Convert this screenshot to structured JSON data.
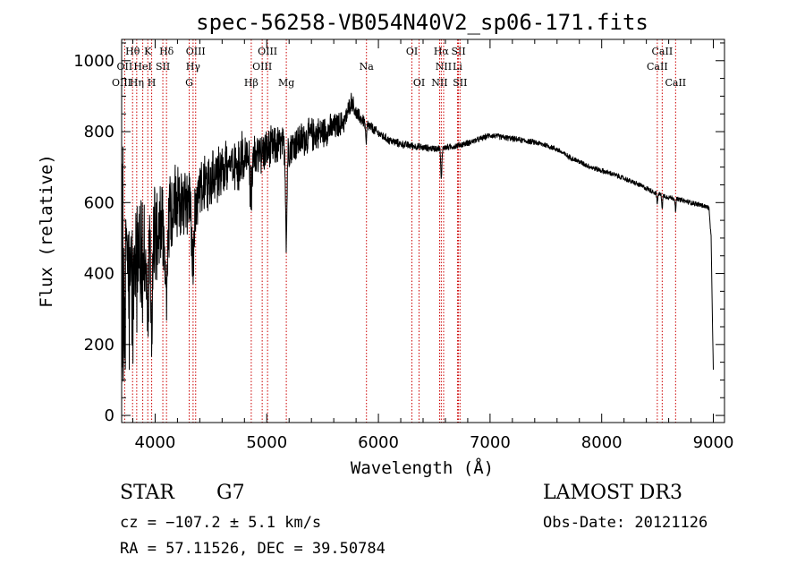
{
  "chart_data": {
    "type": "line",
    "title": "spec-56258-VB054N40V2_sp06-171.fits",
    "xlabel": "Wavelength (Å)",
    "ylabel": "Flux (relative)",
    "xlim": [
      3700,
      9100
    ],
    "ylim": [
      -20,
      1060
    ],
    "x_ticks": [
      4000,
      5000,
      6000,
      7000,
      8000,
      9000
    ],
    "y_ticks": [
      0,
      200,
      400,
      600,
      800,
      1000
    ],
    "x_minor_step": 200,
    "y_minor_step": 50,
    "grid": false,
    "line_color": "#000000",
    "line_marker_color": "#cc0000",
    "spectrum": {
      "x_start": 3700,
      "x_end": 9000,
      "continuum_anchors": [
        [
          3700,
          320
        ],
        [
          3800,
          370
        ],
        [
          3900,
          450
        ],
        [
          4000,
          520
        ],
        [
          4100,
          560
        ],
        [
          4200,
          590
        ],
        [
          4300,
          600
        ],
        [
          4400,
          630
        ],
        [
          4500,
          660
        ],
        [
          4600,
          690
        ],
        [
          4700,
          710
        ],
        [
          4800,
          725
        ],
        [
          4900,
          735
        ],
        [
          5000,
          745
        ],
        [
          5100,
          760
        ],
        [
          5200,
          755
        ],
        [
          5300,
          775
        ],
        [
          5400,
          790
        ],
        [
          5500,
          800
        ],
        [
          5600,
          810
        ],
        [
          5700,
          830
        ],
        [
          5760,
          890
        ],
        [
          5800,
          850
        ],
        [
          5900,
          820
        ],
        [
          6000,
          795
        ],
        [
          6100,
          775
        ],
        [
          6200,
          765
        ],
        [
          6300,
          760
        ],
        [
          6400,
          755
        ],
        [
          6500,
          752
        ],
        [
          6600,
          755
        ],
        [
          6700,
          760
        ],
        [
          6800,
          768
        ],
        [
          6900,
          778
        ],
        [
          7000,
          790
        ],
        [
          7100,
          785
        ],
        [
          7200,
          780
        ],
        [
          7300,
          775
        ],
        [
          7400,
          770
        ],
        [
          7500,
          762
        ],
        [
          7600,
          750
        ],
        [
          7700,
          730
        ],
        [
          7800,
          715
        ],
        [
          7900,
          700
        ],
        [
          8000,
          690
        ],
        [
          8100,
          680
        ],
        [
          8200,
          668
        ],
        [
          8300,
          655
        ],
        [
          8400,
          640
        ],
        [
          8500,
          625
        ],
        [
          8600,
          615
        ],
        [
          8700,
          608
        ],
        [
          8800,
          600
        ],
        [
          8900,
          592
        ],
        [
          8960,
          585
        ],
        [
          8980,
          500
        ],
        [
          9000,
          120
        ]
      ],
      "noise_amplitude_anchors": [
        [
          3700,
          260
        ],
        [
          3800,
          230
        ],
        [
          3900,
          200
        ],
        [
          4000,
          160
        ],
        [
          4200,
          120
        ],
        [
          4400,
          100
        ],
        [
          4600,
          90
        ],
        [
          4800,
          85
        ],
        [
          5000,
          70
        ],
        [
          5200,
          60
        ],
        [
          5400,
          55
        ],
        [
          5600,
          45
        ],
        [
          5800,
          25
        ],
        [
          6000,
          14
        ],
        [
          6500,
          10
        ],
        [
          7000,
          9
        ],
        [
          8000,
          8
        ],
        [
          9000,
          8
        ]
      ],
      "absorption_features": [
        [
          3934,
          260,
          8
        ],
        [
          3969,
          240,
          8
        ],
        [
          4101,
          200,
          10
        ],
        [
          4340,
          200,
          10
        ],
        [
          4861,
          120,
          10
        ],
        [
          5175,
          260,
          6
        ],
        [
          5890,
          60,
          5
        ],
        [
          6563,
          90,
          5
        ],
        [
          8498,
          30,
          4
        ],
        [
          8542,
          35,
          4
        ],
        [
          8662,
          30,
          4
        ]
      ]
    },
    "line_markers": [
      {
        "label": "Hθ",
        "wavelength": 3798,
        "row": 1
      },
      {
        "label": "OII",
        "wavelength": 3727,
        "row": 2
      },
      {
        "label": "OIII",
        "wavelength": 3700,
        "row": 3
      },
      {
        "label": "K",
        "wavelength": 3934,
        "row": 1
      },
      {
        "label": "HeI",
        "wavelength": 3889,
        "row": 2
      },
      {
        "label": "Hη",
        "wavelength": 3835,
        "row": 3
      },
      {
        "label": "Hδ",
        "wavelength": 4102,
        "row": 1
      },
      {
        "label": "SII",
        "wavelength": 4069,
        "row": 2
      },
      {
        "label": "H",
        "wavelength": 3969,
        "row": 3
      },
      {
        "label": "OIII",
        "wavelength": 4363,
        "row": 1
      },
      {
        "label": "Hγ",
        "wavelength": 4340,
        "row": 2
      },
      {
        "label": "G",
        "wavelength": 4305,
        "row": 3
      },
      {
        "label": "OIII",
        "wavelength": 5007,
        "row": 1
      },
      {
        "label": "OIII",
        "wavelength": 4959,
        "row": 2
      },
      {
        "label": "Hβ",
        "wavelength": 4861,
        "row": 3
      },
      {
        "label": "Mg",
        "wavelength": 5175,
        "row": 3
      },
      {
        "label": "Na",
        "wavelength": 5893,
        "row": 2
      },
      {
        "label": "OI",
        "wavelength": 6300,
        "row": 1
      },
      {
        "label": "OI",
        "wavelength": 6364,
        "row": 3
      },
      {
        "label": "Hα",
        "wavelength": 6563,
        "row": 1
      },
      {
        "label": "SII",
        "wavelength": 6717,
        "row": 1
      },
      {
        "label": "NII",
        "wavelength": 6584,
        "row": 2
      },
      {
        "label": "Li",
        "wavelength": 6708,
        "row": 2
      },
      {
        "label": "NII",
        "wavelength": 6548,
        "row": 3
      },
      {
        "label": "SII",
        "wavelength": 6731,
        "row": 3
      },
      {
        "label": "CaII",
        "wavelength": 8542,
        "row": 1
      },
      {
        "label": "CaII",
        "wavelength": 8498,
        "row": 2
      },
      {
        "label": "CaII",
        "wavelength": 8662,
        "row": 3
      }
    ]
  },
  "info": {
    "object_class": "STAR",
    "subclass": "G7",
    "survey": "LAMOST DR3",
    "redshift": "cz = −107.2 ± 5.1 km/s",
    "obs_date": "Obs-Date: 20121126",
    "coords": "RA =  57.11526, DEC =  39.50784"
  }
}
